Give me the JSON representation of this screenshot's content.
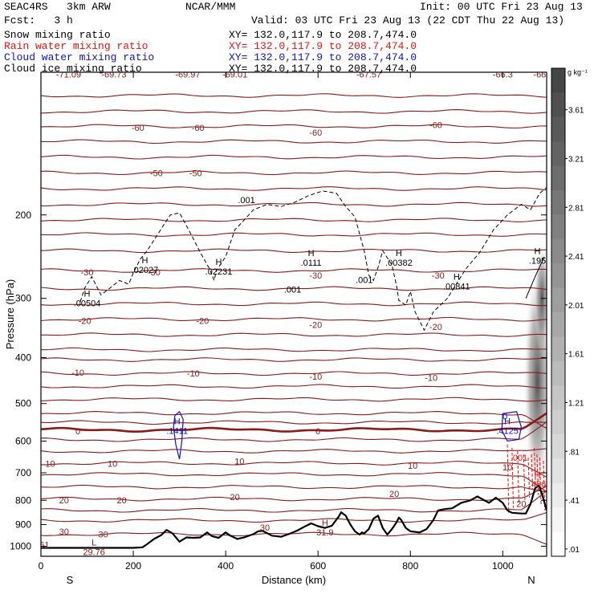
{
  "header": {
    "model": "SEAC4RS   3km ARW",
    "org": "NCAR/MMM",
    "init": "Init: 00 UTC Fri 23 Aug 13",
    "fcst": "Fcst:   3 h",
    "valid": "Valid: 03 UTC Fri 23 Aug 13 (22 CDT Thu 22 Aug 13)"
  },
  "colors": {
    "snow": "#000000",
    "rain": "#ee1111",
    "cloud_water": "#1111cc",
    "cloud_ice": "#000000",
    "temperature": "#8b1a1a",
    "terrain": "#000000"
  },
  "legend": [
    {
      "name": "Snow mixing ratio",
      "xy": "XY= 132.0,117.9 to 208.7,474.0",
      "color": "#000000"
    },
    {
      "name": "Rain water mixing ratio",
      "xy": "XY= 132.0,117.9 to 208.7,474.0",
      "color": "#ee1111"
    },
    {
      "name": "Cloud water mixing ratio",
      "xy": "XY= 132.0,117.9 to 208.7,474.0",
      "color": "#1111cc"
    },
    {
      "name": "Cloud ice mixing ratio",
      "xy": "XY= 132.0,117.9 to 208.7,474.0",
      "color": "#000000"
    }
  ],
  "chart_data": {
    "type": "cross-section",
    "xlabel": "Distance (km)",
    "ylabel": "Pressure (hPa)",
    "xlim": [
      0,
      1095
    ],
    "ylim": [
      100,
      1050
    ],
    "yscale": "log",
    "xticks": [
      0,
      200,
      400,
      600,
      800,
      1000
    ],
    "yticks": [
      200,
      300,
      400,
      500,
      600,
      700,
      800,
      900,
      1000
    ],
    "left_end": "S",
    "right_end": "N",
    "colorbar": {
      "unit": "g kg⁻¹",
      "labels": [
        "3.61",
        "3.21",
        "2.81",
        "2.41",
        "2.01",
        "1.61",
        "1.21",
        ".81",
        ".41",
        ".01"
      ]
    },
    "temperature_contours": [
      {
        "label": "-60",
        "p": 130
      },
      {
        "label": "-50",
        "p": 163
      },
      {
        "label": "-40",
        "p": 205
      },
      {
        "label": "-30",
        "p": 262
      },
      {
        "label": "-20",
        "p": 332
      },
      {
        "label": "-10",
        "p": 432
      },
      {
        "label": "0",
        "p": 568
      },
      {
        "label": "10",
        "p": 668
      },
      {
        "label": "20",
        "p": 795
      },
      {
        "label": "30",
        "p": 943
      }
    ],
    "temperature_labels": [
      {
        "text": "-71.09",
        "x": 60,
        "p": 101
      },
      {
        "text": "-69.73",
        "x": 158,
        "p": 101
      },
      {
        "text": "-69.97",
        "x": 318,
        "p": 101
      },
      {
        "text": "-69.01",
        "x": 420,
        "p": 101
      },
      {
        "text": "-67.57",
        "x": 710,
        "p": 101
      },
      {
        "text": "-66.3",
        "x": 1000,
        "p": 101
      },
      {
        "text": "-66",
        "x": 1080,
        "p": 101
      },
      {
        "text": "-60",
        "x": 210,
        "p": 131
      },
      {
        "text": "-60",
        "x": 340,
        "p": 131
      },
      {
        "text": "-60",
        "x": 595,
        "p": 134
      },
      {
        "text": "-60",
        "x": 855,
        "p": 129
      },
      {
        "text": "-50",
        "x": 250,
        "p": 163
      },
      {
        "text": "-50",
        "x": 335,
        "p": 163
      },
      {
        "text": "-30",
        "x": 100,
        "p": 264
      },
      {
        "text": "-30",
        "x": 245,
        "p": 264
      },
      {
        "text": "-30",
        "x": 595,
        "p": 268
      },
      {
        "text": "-30",
        "x": 860,
        "p": 268
      },
      {
        "text": "-20",
        "x": 95,
        "p": 334
      },
      {
        "text": "-20",
        "x": 350,
        "p": 334
      },
      {
        "text": "-20",
        "x": 595,
        "p": 341
      },
      {
        "text": "-20",
        "x": 855,
        "p": 344
      },
      {
        "text": "-10",
        "x": 80,
        "p": 430
      },
      {
        "text": "-10",
        "x": 330,
        "p": 432
      },
      {
        "text": "-10",
        "x": 595,
        "p": 438
      },
      {
        "text": "-10",
        "x": 845,
        "p": 441
      },
      {
        "text": "0",
        "x": 80,
        "p": 571
      },
      {
        "text": "0",
        "x": 600,
        "p": 571
      },
      {
        "text": "10",
        "x": 20,
        "p": 669
      },
      {
        "text": "10",
        "x": 155,
        "p": 669
      },
      {
        "text": "10",
        "x": 430,
        "p": 662
      },
      {
        "text": "10",
        "x": 805,
        "p": 676
      },
      {
        "text": "10",
        "x": 1010,
        "p": 681
      },
      {
        "text": "20",
        "x": 50,
        "p": 799
      },
      {
        "text": "20",
        "x": 175,
        "p": 799
      },
      {
        "text": "20",
        "x": 420,
        "p": 787
      },
      {
        "text": "20",
        "x": 765,
        "p": 774
      },
      {
        "text": "20",
        "x": 1040,
        "p": 814
      },
      {
        "text": "30",
        "x": 50,
        "p": 931
      },
      {
        "text": "30",
        "x": 135,
        "p": 944
      },
      {
        "text": "30",
        "x": 485,
        "p": 913
      }
    ],
    "extrema_labels": [
      {
        "letter": "H",
        "value": ".00504",
        "x": 100,
        "p": 300,
        "color": "#000000"
      },
      {
        "letter": "H",
        "value": ".02027",
        "x": 225,
        "p": 255,
        "color": "#000000"
      },
      {
        "letter": "H",
        "value": ".02231",
        "x": 385,
        "p": 257,
        "color": "#000000"
      },
      {
        "letter": "H",
        "value": ".0111",
        "x": 585,
        "p": 246,
        "color": "#000000"
      },
      {
        "letter": "H",
        "value": ".00382",
        "x": 775,
        "p": 246,
        "color": "#000000"
      },
      {
        "letter": "H",
        "value": ".00841",
        "x": 900,
        "p": 276,
        "color": "#000000"
      },
      {
        "letter": "H",
        "value": ".195",
        "x": 1075,
        "p": 244,
        "color": "#000000"
      },
      {
        "letter": "H",
        "value": ".1411",
        "x": 295,
        "p": 557,
        "color": "#1111cc"
      },
      {
        "letter": "H",
        "value": ".4125",
        "x": 1010,
        "p": 557,
        "color": "#1111cc"
      },
      {
        "letter": "H",
        "value": "31.9",
        "x": 615,
        "p": 912,
        "color": "#8b1a1a"
      },
      {
        "letter": "L",
        "value": "29.76",
        "x": 115,
        "p": 1003,
        "color": "#8b1a1a"
      },
      {
        "letter": "H",
        "value": ".456",
        "x": 1075,
        "p": 722,
        "color": "#ee1111"
      }
    ],
    "small_labels": [
      {
        "text": ".001",
        "x": 445,
        "p": 186,
        "color": "#000000"
      },
      {
        "text": ".001",
        "x": 545,
        "p": 287,
        "color": "#000000"
      },
      {
        "text": ".001",
        "x": 700,
        "p": 274,
        "color": "#000000"
      },
      {
        "text": ".001",
        "x": 1035,
        "p": 650,
        "color": "#ee1111"
      },
      {
        "text": ".61",
        "x": 5,
        "p": 993,
        "color": "#8b1a1a"
      },
      {
        "text": "0",
        "x": 1005,
        "p": 532,
        "color": "#1111cc"
      },
      {
        "text": "L",
        "x": 695,
        "p": 98,
        "color": "#8b1a1a"
      },
      {
        "text": "L",
        "x": 955,
        "p": 98,
        "color": "#8b1a1a"
      },
      {
        "text": "L",
        "x": 1065,
        "p": 98,
        "color": "#8b1a1a"
      }
    ],
    "terrain": [
      [
        0,
        1008
      ],
      [
        100,
        1008
      ],
      [
        200,
        1008
      ],
      [
        220,
        1005
      ],
      [
        230,
        990
      ],
      [
        245,
        965
      ],
      [
        260,
        948
      ],
      [
        272,
        924
      ],
      [
        285,
        940
      ],
      [
        300,
        978
      ],
      [
        315,
        958
      ],
      [
        330,
        960
      ],
      [
        345,
        958
      ],
      [
        360,
        935
      ],
      [
        370,
        952
      ],
      [
        385,
        960
      ],
      [
        400,
        935
      ],
      [
        410,
        950
      ],
      [
        425,
        965
      ],
      [
        440,
        958
      ],
      [
        460,
        943
      ],
      [
        470,
        930
      ],
      [
        480,
        928
      ],
      [
        500,
        950
      ],
      [
        520,
        955
      ],
      [
        540,
        940
      ],
      [
        555,
        927
      ],
      [
        570,
        910
      ],
      [
        585,
        895
      ],
      [
        600,
        907
      ],
      [
        615,
        915
      ],
      [
        630,
        905
      ],
      [
        645,
        865
      ],
      [
        650,
        848
      ],
      [
        660,
        862
      ],
      [
        670,
        900
      ],
      [
        680,
        930
      ],
      [
        690,
        945
      ],
      [
        695,
        935
      ],
      [
        700,
        940
      ],
      [
        710,
        920
      ],
      [
        720,
        875
      ],
      [
        730,
        862
      ],
      [
        740,
        915
      ],
      [
        750,
        945
      ],
      [
        760,
        920
      ],
      [
        770,
        890
      ],
      [
        775,
        870
      ],
      [
        780,
        880
      ],
      [
        790,
        915
      ],
      [
        800,
        930
      ],
      [
        820,
        935
      ],
      [
        835,
        920
      ],
      [
        850,
        880
      ],
      [
        860,
        840
      ],
      [
        875,
        835
      ],
      [
        890,
        832
      ],
      [
        910,
        810
      ],
      [
        930,
        800
      ],
      [
        945,
        785
      ],
      [
        955,
        795
      ],
      [
        970,
        810
      ],
      [
        985,
        790
      ],
      [
        1000,
        810
      ],
      [
        1010,
        840
      ],
      [
        1020,
        850
      ],
      [
        1040,
        853
      ],
      [
        1050,
        853
      ],
      [
        1060,
        815
      ],
      [
        1070,
        755
      ],
      [
        1078,
        745
      ],
      [
        1085,
        775
      ],
      [
        1095,
        840
      ]
    ]
  }
}
